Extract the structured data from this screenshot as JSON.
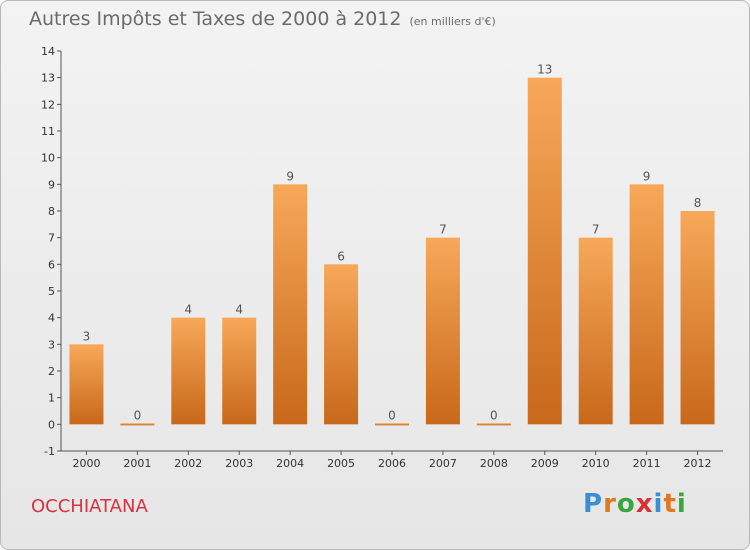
{
  "title": "Autres Impôts et Taxes de 2000 à 2012",
  "subtitle": "(en milliers d'€)",
  "place": "OCCHIATANA",
  "logo": {
    "letters": [
      "P",
      "r",
      "o",
      "x",
      "i",
      "t",
      "i"
    ],
    "colors": [
      "#3a8fd4",
      "#e07820",
      "#3aa63a",
      "#d93030",
      "#3a8fd4",
      "#e07820",
      "#3aa63a"
    ]
  },
  "colors": {
    "bar_light": "#f7a859",
    "bar_dark": "#c8681a",
    "axis": "#555555",
    "grid": "#d8d8d8",
    "title": "#6b6b6b",
    "place": "#d9333f"
  },
  "chart_data": {
    "type": "bar",
    "title": "Autres Impôts et Taxes de 2000 à 2012",
    "subtitle": "(en milliers d'€)",
    "categories": [
      "2000",
      "2001",
      "2002",
      "2003",
      "2004",
      "2005",
      "2006",
      "2007",
      "2008",
      "2009",
      "2010",
      "2011",
      "2012"
    ],
    "values": [
      3,
      0,
      4,
      4,
      9,
      6,
      0,
      7,
      0,
      13,
      7,
      9,
      8
    ],
    "data_labels": [
      "3",
      "0",
      "4",
      "4",
      "9",
      "6",
      "0",
      "7",
      "0",
      "13",
      "7",
      "9",
      "8"
    ],
    "y_ticks": [
      "-1",
      "0",
      "1",
      "2",
      "3",
      "4",
      "5",
      "6",
      "7",
      "8",
      "9",
      "10",
      "11",
      "12",
      "13",
      "14"
    ],
    "ylim": [
      -1,
      14
    ],
    "grid": false,
    "xlabel": "",
    "ylabel": ""
  }
}
